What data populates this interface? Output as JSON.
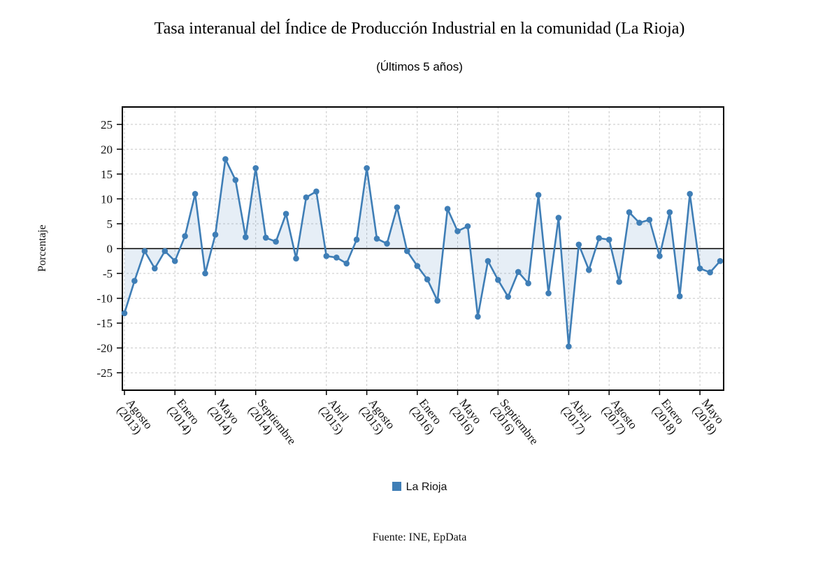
{
  "page": {
    "source": "Fuente: INE, EpData"
  },
  "chart_data": {
    "type": "line",
    "title": "Tasa interanual del Índice de Producción Industrial en la comunidad (La Rioja)",
    "subtitle": "(Últimos 5 años)",
    "ylabel": "Porcentaje",
    "xlabel": "",
    "legend_position": "bottom",
    "grid": "dashed",
    "ylim": [
      -28.5,
      28.5
    ],
    "yticks": [
      25,
      20,
      15,
      10,
      5,
      0,
      -5,
      -10,
      -15,
      -20,
      -25
    ],
    "n_points": 60,
    "x_ticks": [
      {
        "pos": 0,
        "month": "Agosto",
        "year": "(2013)"
      },
      {
        "pos": 5,
        "month": "Enero",
        "year": "(2014)"
      },
      {
        "pos": 9,
        "month": "Mayo",
        "year": "(2014)"
      },
      {
        "pos": 13,
        "month": "Septiembre",
        "year": "(2014)"
      },
      {
        "pos": 20,
        "month": "Abril",
        "year": "(2015)"
      },
      {
        "pos": 24,
        "month": "Agosto",
        "year": "(2015)"
      },
      {
        "pos": 29,
        "month": "Enero",
        "year": "(2016)"
      },
      {
        "pos": 33,
        "month": "Mayo",
        "year": "(2016)"
      },
      {
        "pos": 37,
        "month": "Septiembre",
        "year": "(2016)"
      },
      {
        "pos": 44,
        "month": "Abril",
        "year": "(2017)"
      },
      {
        "pos": 48,
        "month": "Agosto",
        "year": "(2017)"
      },
      {
        "pos": 53,
        "month": "Enero",
        "year": "(2018)"
      },
      {
        "pos": 57,
        "month": "Mayo",
        "year": "(2018)"
      }
    ],
    "series": [
      {
        "name": "La Rioja",
        "color": "#3F7EB6",
        "fill": "rgba(63,126,182,0.13)",
        "values": [
          -13,
          -6.5,
          -0.5,
          -4,
          -0.5,
          -2.5,
          2.5,
          11,
          -5,
          2.8,
          18,
          13.8,
          2.3,
          16.2,
          2.2,
          1.4,
          7,
          -2,
          10.3,
          11.5,
          -1.5,
          -1.8,
          -3,
          1.8,
          16.2,
          2,
          1,
          8.3,
          -0.5,
          -3.5,
          -6.2,
          -10.5,
          8,
          3.5,
          4.5,
          -13.7,
          -2.5,
          -6.3,
          -9.7,
          -4.7,
          -7,
          10.8,
          -9,
          6.2,
          -19.7,
          0.8,
          -4.3,
          2.1,
          1.8,
          -6.7,
          7.3,
          5.2,
          5.8,
          -1.5,
          7.3,
          -9.6,
          11,
          -4,
          -4.8,
          -2.5
        ]
      }
    ]
  }
}
